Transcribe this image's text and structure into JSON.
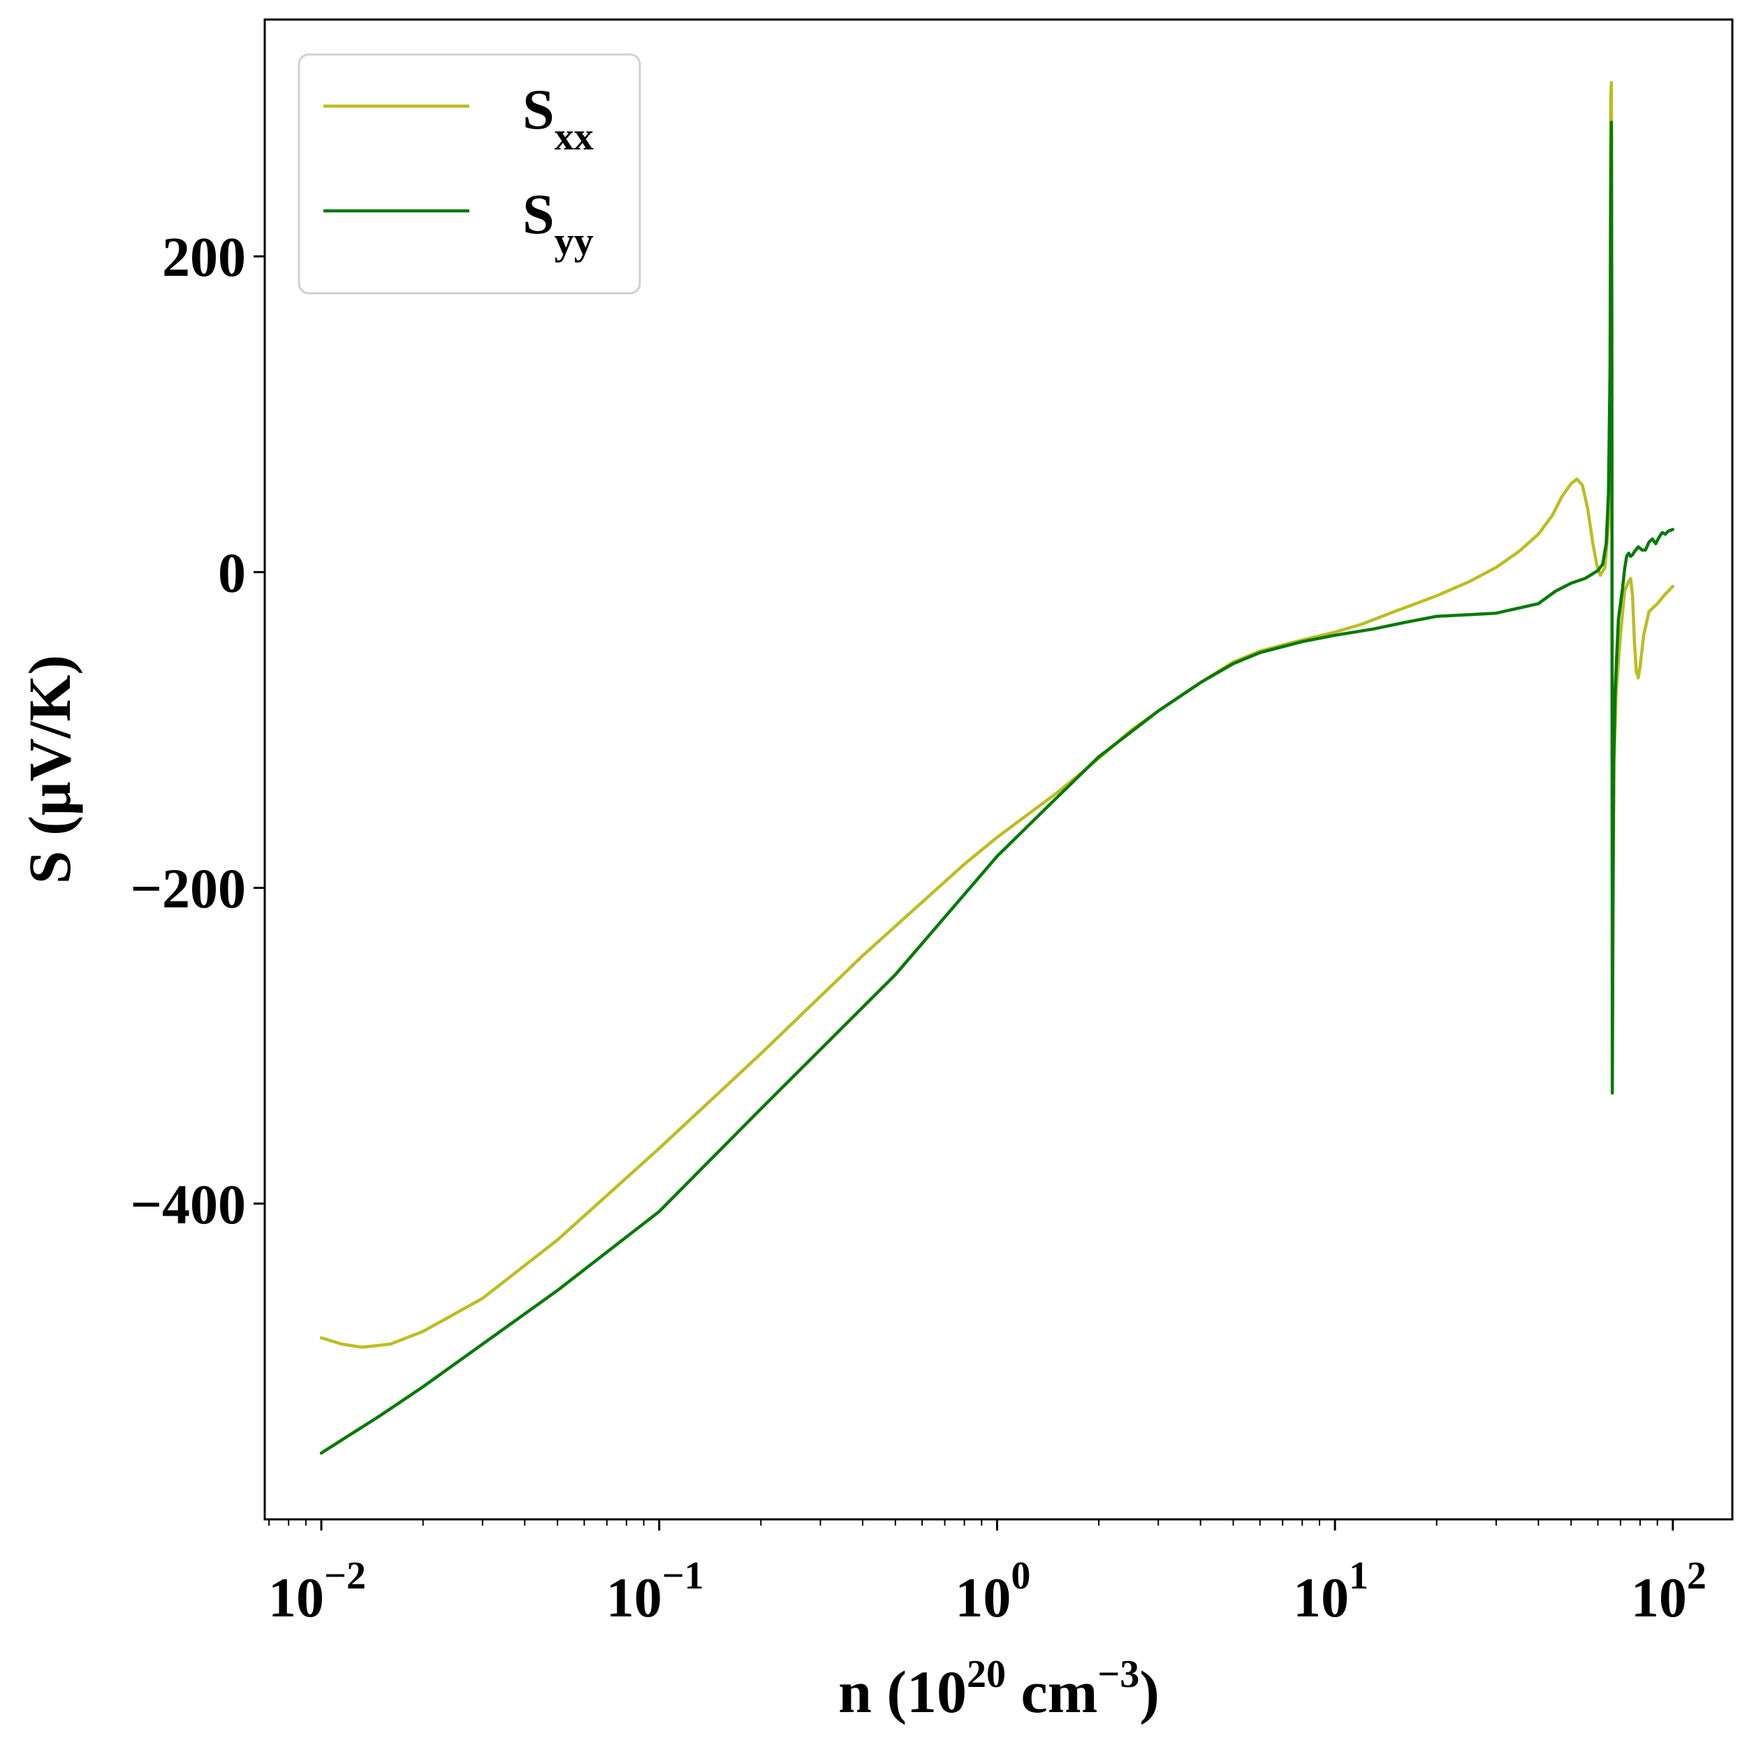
{
  "chart_data": {
    "type": "line",
    "title": "",
    "xscale": "log",
    "xlim": [
      0.0068,
      150
    ],
    "ylim": [
      -600,
      350
    ],
    "xlabel": {
      "main": "n (10",
      "sup1": "20",
      "mid": " cm",
      "sup2": "−3",
      "end": ")"
    },
    "ylabel": "S (μV/K)",
    "grid": false,
    "legend_position": "top-left",
    "x_ticks": [
      {
        "value": 0.01,
        "base": "10",
        "exp": "−2"
      },
      {
        "value": 0.1,
        "base": "10",
        "exp": "−1"
      },
      {
        "value": 1,
        "base": "10",
        "exp": "0"
      },
      {
        "value": 10,
        "base": "10",
        "exp": "1"
      },
      {
        "value": 100,
        "base": "10",
        "exp": "2"
      }
    ],
    "y_ticks": [
      {
        "value": 200,
        "label": "200"
      },
      {
        "value": 0,
        "label": "0"
      },
      {
        "value": -200,
        "label": "−200"
      },
      {
        "value": -400,
        "label": "−400"
      }
    ],
    "series": [
      {
        "name": "S_xx",
        "label_main": "S",
        "label_sub": "xx",
        "color": "#bcbd22",
        "points": [
          [
            0.01,
            -485
          ],
          [
            0.0115,
            -489
          ],
          [
            0.0132,
            -491
          ],
          [
            0.016,
            -489
          ],
          [
            0.02,
            -481
          ],
          [
            0.03,
            -460
          ],
          [
            0.05,
            -423
          ],
          [
            0.1,
            -365
          ],
          [
            0.2,
            -305
          ],
          [
            0.4,
            -243
          ],
          [
            0.8,
            -185
          ],
          [
            1.0,
            -168
          ],
          [
            1.5,
            -140
          ],
          [
            2.0,
            -118
          ],
          [
            2.5,
            -100
          ],
          [
            3.0,
            -88
          ],
          [
            4.0,
            -70
          ],
          [
            5.0,
            -57
          ],
          [
            6.0,
            -50
          ],
          [
            8.0,
            -43
          ],
          [
            10,
            -38
          ],
          [
            12,
            -33
          ],
          [
            15,
            -25
          ],
          [
            20,
            -15
          ],
          [
            25,
            -6
          ],
          [
            30,
            3
          ],
          [
            35,
            13
          ],
          [
            40,
            24
          ],
          [
            44,
            36
          ],
          [
            47,
            48
          ],
          [
            50,
            56
          ],
          [
            52,
            59
          ],
          [
            54,
            55
          ],
          [
            56,
            40
          ],
          [
            58,
            18
          ],
          [
            59.5,
            5
          ],
          [
            61,
            -2
          ],
          [
            63,
            3
          ],
          [
            64.5,
            30
          ],
          [
            65.2,
            120
          ],
          [
            65.5,
            300
          ],
          [
            65.8,
            310
          ],
          [
            66.0,
            100
          ],
          [
            66.2,
            -200
          ],
          [
            66.3,
            -280
          ],
          [
            66.5,
            -200
          ],
          [
            67,
            -120
          ],
          [
            68,
            -75
          ],
          [
            70,
            -40
          ],
          [
            72,
            -12
          ],
          [
            74,
            -6
          ],
          [
            75,
            -4
          ],
          [
            76,
            -15
          ],
          [
            77,
            -45
          ],
          [
            78,
            -63
          ],
          [
            79,
            -67
          ],
          [
            80,
            -60
          ],
          [
            82,
            -40
          ],
          [
            85,
            -25
          ],
          [
            90,
            -20
          ],
          [
            95,
            -14
          ],
          [
            100,
            -9
          ]
        ]
      },
      {
        "name": "S_yy",
        "label_main": "S",
        "label_sub": "yy",
        "color": "#057a05",
        "points": [
          [
            0.01,
            -558
          ],
          [
            0.015,
            -534
          ],
          [
            0.02,
            -516
          ],
          [
            0.05,
            -455
          ],
          [
            0.1,
            -405
          ],
          [
            0.2,
            -340
          ],
          [
            0.5,
            -255
          ],
          [
            1.0,
            -180
          ],
          [
            1.5,
            -143
          ],
          [
            2.0,
            -117
          ],
          [
            3.0,
            -88
          ],
          [
            4.0,
            -70
          ],
          [
            5.0,
            -58
          ],
          [
            6.0,
            -51
          ],
          [
            8.0,
            -44
          ],
          [
            10,
            -40
          ],
          [
            13,
            -36
          ],
          [
            16,
            -32
          ],
          [
            20,
            -28
          ],
          [
            30,
            -26
          ],
          [
            40,
            -20
          ],
          [
            45,
            -12
          ],
          [
            50,
            -7
          ],
          [
            55,
            -4
          ],
          [
            58,
            -1
          ],
          [
            60,
            1
          ],
          [
            62,
            5
          ],
          [
            63.5,
            18
          ],
          [
            64.5,
            50
          ],
          [
            65.2,
            130
          ],
          [
            65.5,
            240
          ],
          [
            65.8,
            285
          ],
          [
            66.0,
            150
          ],
          [
            66.1,
            -100
          ],
          [
            66.2,
            -330
          ],
          [
            66.4,
            -250
          ],
          [
            66.8,
            -120
          ],
          [
            67.5,
            -75
          ],
          [
            69,
            -30
          ],
          [
            71,
            -10
          ],
          [
            72,
            2
          ],
          [
            73,
            10
          ],
          [
            74,
            12
          ],
          [
            75,
            10
          ],
          [
            76,
            11
          ],
          [
            77,
            13
          ],
          [
            79,
            16
          ],
          [
            81,
            14
          ],
          [
            83,
            14
          ],
          [
            85,
            19
          ],
          [
            87,
            21
          ],
          [
            89,
            18
          ],
          [
            91,
            22
          ],
          [
            93,
            25
          ],
          [
            95,
            24
          ],
          [
            97,
            26
          ],
          [
            100,
            27
          ]
        ]
      }
    ]
  }
}
